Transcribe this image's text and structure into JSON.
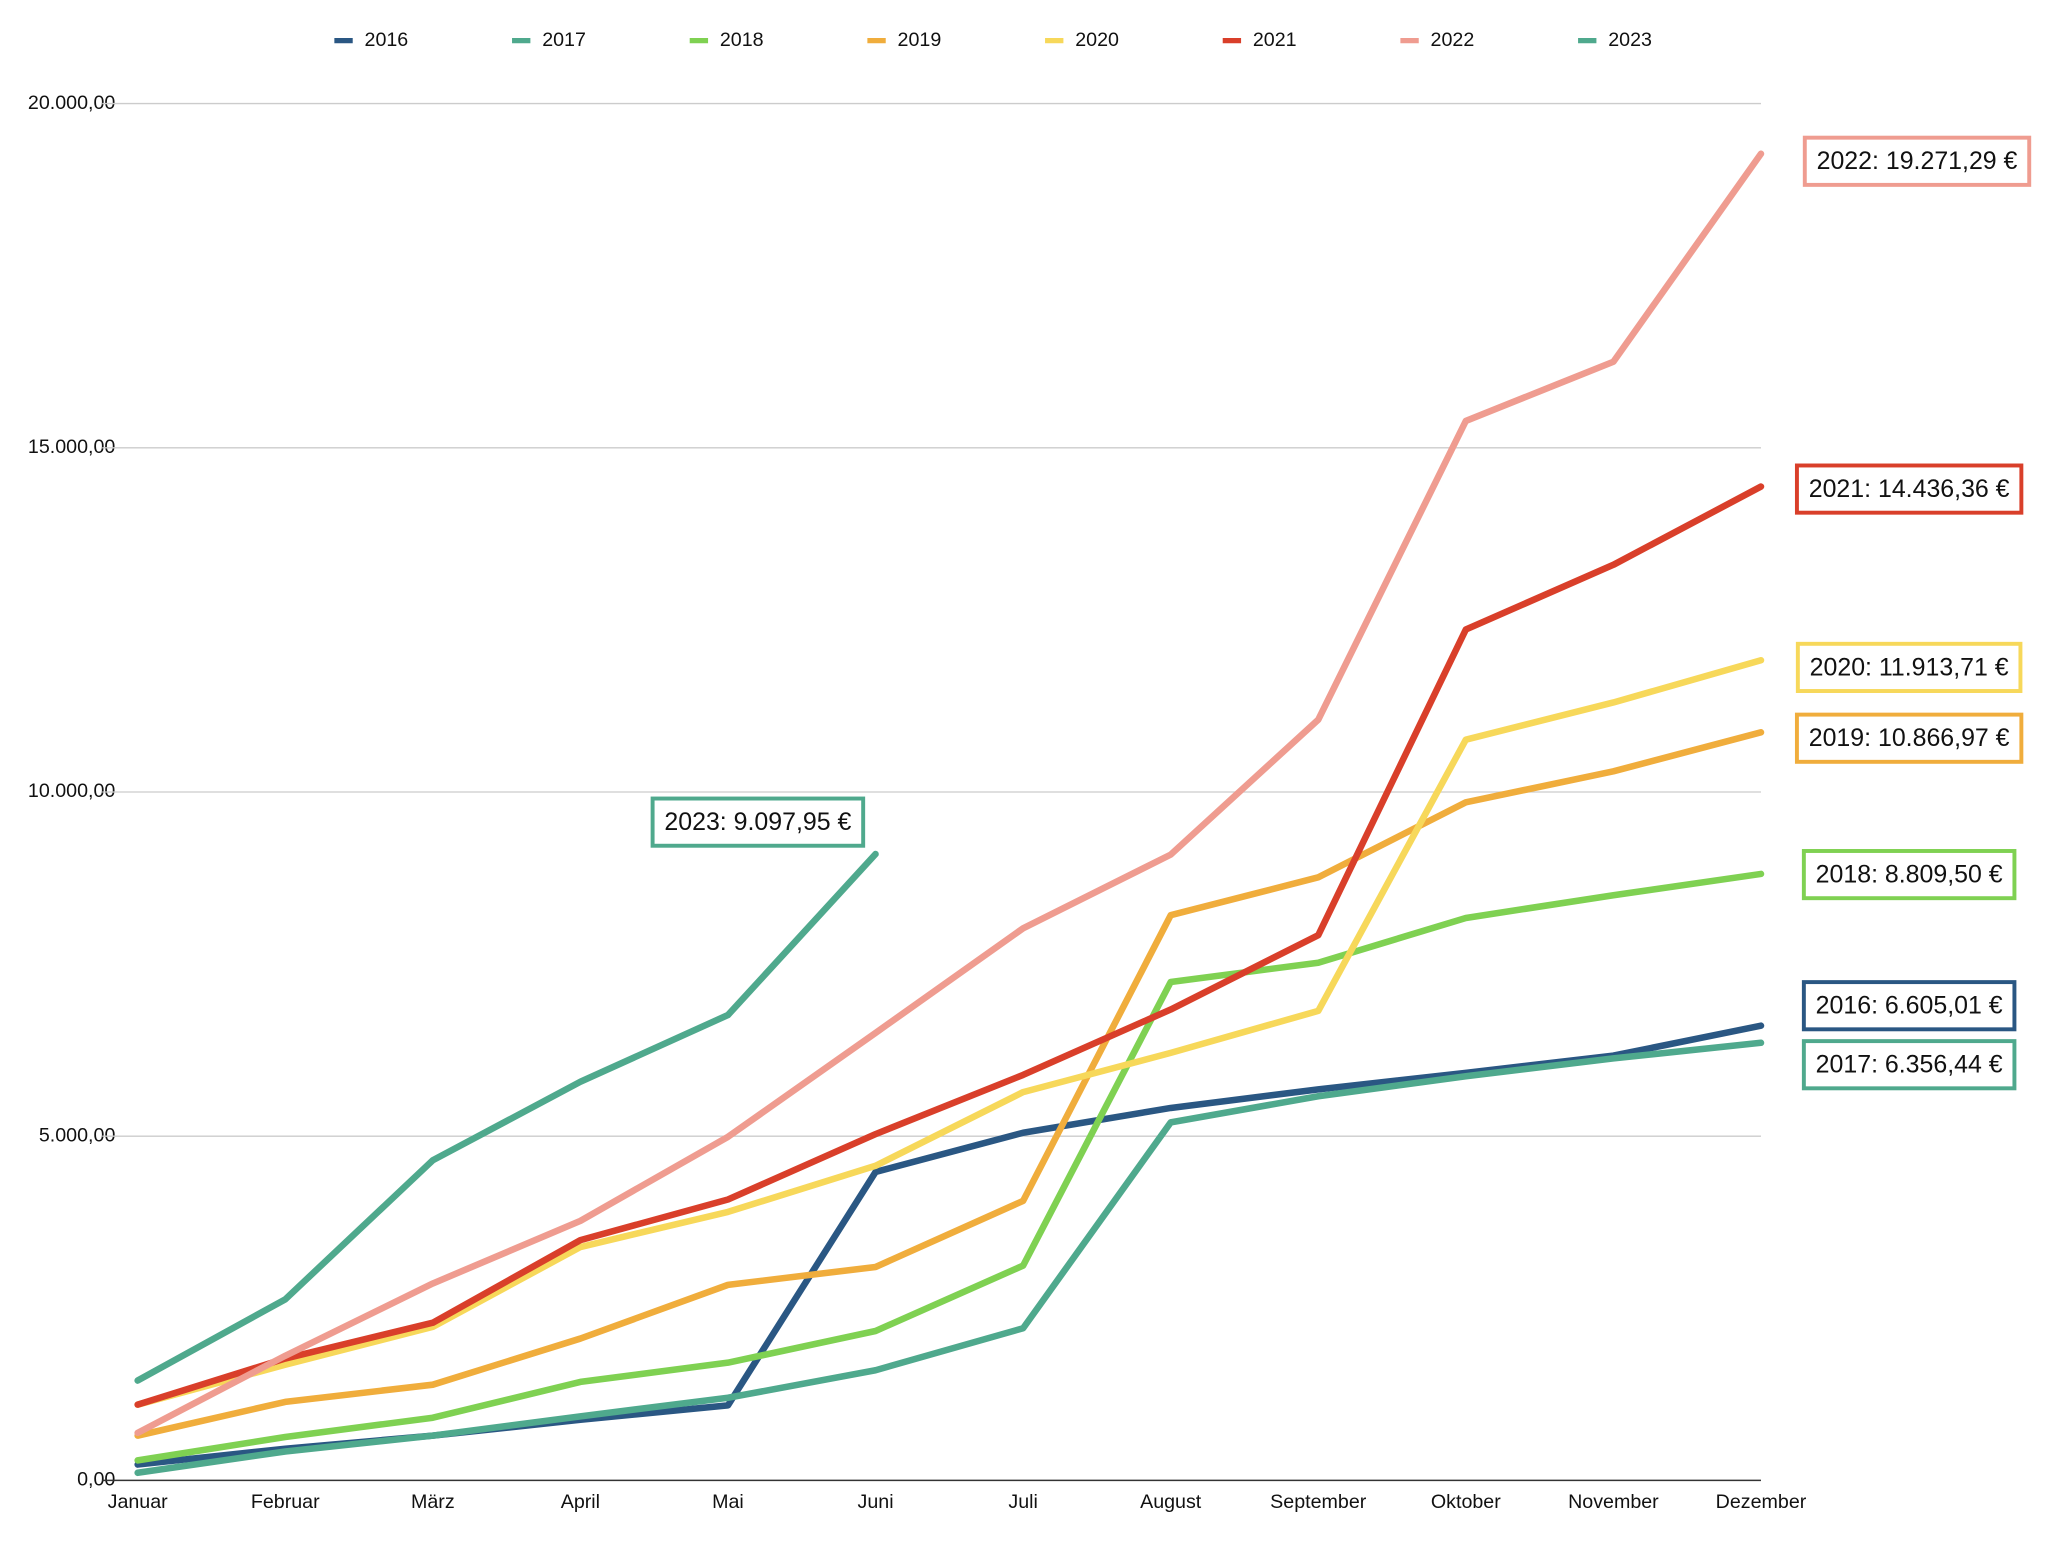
{
  "chart_data": {
    "type": "line",
    "categories": [
      "Januar",
      "Februar",
      "März",
      "April",
      "Mai",
      "Juni",
      "Juli",
      "August",
      "September",
      "Oktober",
      "November",
      "Dezember"
    ],
    "ylim": [
      0,
      20000
    ],
    "yticks": [
      {
        "value": 0,
        "label": "0,00"
      },
      {
        "value": 5000,
        "label": "5.000,00"
      },
      {
        "value": 10000,
        "label": "10.000,00"
      },
      {
        "value": 15000,
        "label": "15.000,00"
      },
      {
        "value": 20000,
        "label": "20.000,00"
      }
    ],
    "grid": true,
    "legend": "top",
    "series": [
      {
        "name": "2016",
        "color": "#2a5783",
        "values": [
          230,
          460,
          650,
          880,
          1090,
          4480,
          5050,
          5410,
          5680,
          5920,
          6170,
          6605.01
        ],
        "end_label": "2016: 6.605,01 €"
      },
      {
        "name": "2017",
        "color": "#4fa98d",
        "values": [
          110,
          420,
          650,
          930,
          1200,
          1600,
          2210,
          5200,
          5580,
          5870,
          6130,
          6356.44
        ],
        "end_label": "2017: 6.356,44 €"
      },
      {
        "name": "2018",
        "color": "#7fd152",
        "values": [
          290,
          630,
          910,
          1430,
          1710,
          2170,
          3120,
          7240,
          7520,
          8170,
          8500,
          8809.5
        ],
        "end_label": "2018: 8.809,50 €"
      },
      {
        "name": "2019",
        "color": "#f0ad3c",
        "values": [
          650,
          1140,
          1390,
          2060,
          2840,
          3100,
          4060,
          8210,
          8760,
          9850,
          10300,
          10866.97
        ],
        "end_label": "2019: 10.866,97 €"
      },
      {
        "name": "2020",
        "color": "#f7d85a",
        "values": [
          1100,
          1680,
          2230,
          3390,
          3900,
          4570,
          5640,
          6210,
          6820,
          10760,
          11300,
          11913.71
        ],
        "end_label": "2020: 11.913,71 €"
      },
      {
        "name": "2021",
        "color": "#d93f2a",
        "values": [
          1100,
          1770,
          2290,
          3490,
          4080,
          5030,
          5890,
          6840,
          7920,
          12360,
          13300,
          14436.36
        ],
        "end_label": "2021: 14.436,36 €"
      },
      {
        "name": "2022",
        "color": "#ef9c90",
        "values": [
          690,
          1810,
          2860,
          3770,
          4990,
          6500,
          8020,
          9090,
          11050,
          15390,
          16250,
          19271.29
        ],
        "end_label": "2022: 19.271,29 €"
      },
      {
        "name": "2023",
        "color": "#4fa98d",
        "values": [
          1450,
          2630,
          4650,
          5790,
          6760,
          9097.95,
          null,
          null,
          null,
          null,
          null,
          null
        ],
        "end_label": "2023: 9.097,95 €"
      }
    ]
  }
}
